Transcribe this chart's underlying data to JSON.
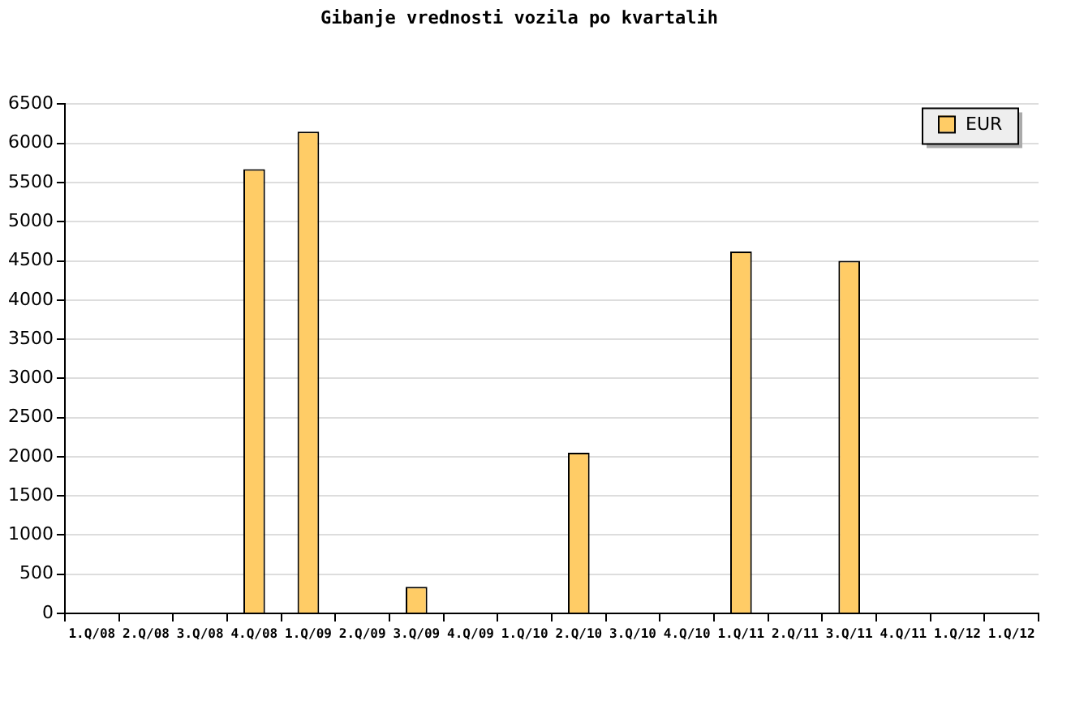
{
  "chart_data": {
    "type": "bar",
    "title": "Gibanje vrednosti vozila po kvartalih",
    "categories": [
      "1.Q/08",
      "2.Q/08",
      "3.Q/08",
      "4.Q/08",
      "1.Q/09",
      "2.Q/09",
      "3.Q/09",
      "4.Q/09",
      "1.Q/10",
      "2.Q/10",
      "3.Q/10",
      "4.Q/10",
      "1.Q/11",
      "2.Q/11",
      "3.Q/11",
      "4.Q/11",
      "1.Q/12",
      "1.Q/12"
    ],
    "series": [
      {
        "name": "EUR",
        "color": "#ffcc66",
        "values": [
          null,
          null,
          null,
          5670,
          6150,
          null,
          340,
          null,
          null,
          2050,
          null,
          null,
          4620,
          null,
          4500,
          null,
          null,
          null
        ]
      }
    ],
    "ylim": [
      0,
      6500
    ],
    "yticks": [
      0,
      500,
      1000,
      1500,
      2000,
      2500,
      3000,
      3500,
      4000,
      4500,
      5000,
      5500,
      6000,
      6500
    ],
    "grid": "y",
    "legend": "top right"
  }
}
